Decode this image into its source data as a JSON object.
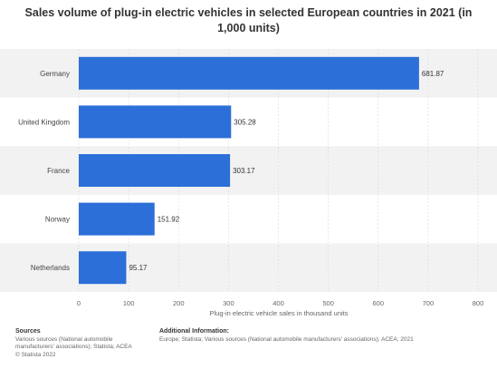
{
  "colors": {
    "bar": "#2c6fd8",
    "band": "#f2f2f2",
    "grid": "#d9d9d9"
  },
  "chart_data": {
    "type": "bar",
    "orientation": "horizontal",
    "title": "Sales volume of plug-in electric vehicles in selected European countries in 2021 (in 1,000 units)",
    "xlabel": "Plug-in electric vehicle sales in thousand units",
    "ylabel": "",
    "categories": [
      "Germany",
      "United Kingdom",
      "France",
      "Norway",
      "Netherlands"
    ],
    "values": [
      681.87,
      305.28,
      303.17,
      151.92,
      95.17
    ],
    "value_labels": [
      "681.87",
      "305.28",
      "303.17",
      "151.92",
      "95.17"
    ],
    "xlim": [
      0,
      800
    ],
    "ticks": [
      0,
      100,
      200,
      300,
      400,
      500,
      600,
      700,
      800
    ],
    "grid": true,
    "legend": "none"
  },
  "footer": {
    "sources_title": "Sources",
    "sources_text": "Various sources (National automobile manufacturers' associations); Statista; ACEA",
    "copyright": "© Statista 2022",
    "additional_title": "Additional Information:",
    "additional_text": "Europe; Statista; Various sources (National automobile manufacturers' associations); ACEA; 2021"
  }
}
